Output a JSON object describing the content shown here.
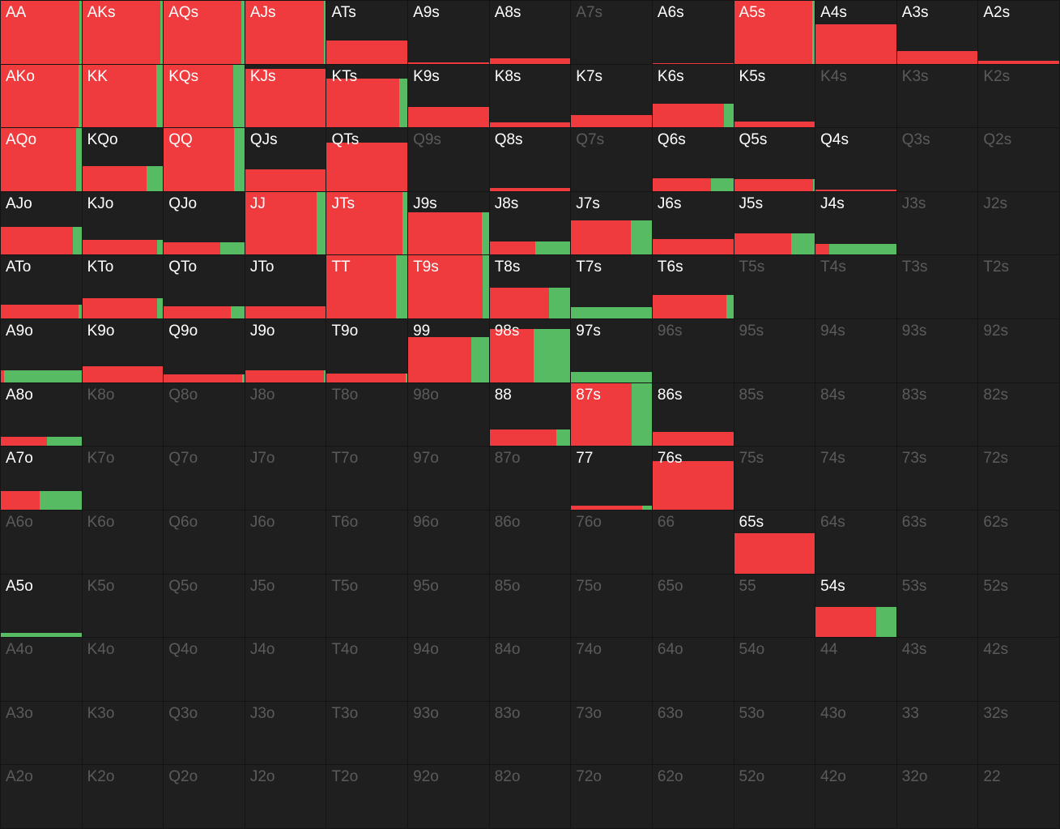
{
  "colors": {
    "raise": "#ef3b3d",
    "call": "#57bb63",
    "cell_bg": "#1f1f1f",
    "active_text": "#ffffff",
    "inactive_text": "#5b5b5b"
  },
  "grid": {
    "rows": [
      [
        "AA",
        "AKs",
        "AQs",
        "AJs",
        "ATs",
        "A9s",
        "A8s",
        "A7s",
        "A6s",
        "A5s",
        "A4s",
        "A3s",
        "A2s"
      ],
      [
        "AKo",
        "KK",
        "KQs",
        "KJs",
        "KTs",
        "K9s",
        "K8s",
        "K7s",
        "K6s",
        "K5s",
        "K4s",
        "K3s",
        "K2s"
      ],
      [
        "AQo",
        "KQo",
        "QQ",
        "QJs",
        "QTs",
        "Q9s",
        "Q8s",
        "Q7s",
        "Q6s",
        "Q5s",
        "Q4s",
        "Q3s",
        "Q2s"
      ],
      [
        "AJo",
        "KJo",
        "QJo",
        "JJ",
        "JTs",
        "J9s",
        "J8s",
        "J7s",
        "J6s",
        "J5s",
        "J4s",
        "J3s",
        "J2s"
      ],
      [
        "ATo",
        "KTo",
        "QTo",
        "JTo",
        "TT",
        "T9s",
        "T8s",
        "T7s",
        "T6s",
        "T5s",
        "T4s",
        "T3s",
        "T2s"
      ],
      [
        "A9o",
        "K9o",
        "Q9o",
        "J9o",
        "T9o",
        "99",
        "98s",
        "97s",
        "96s",
        "95s",
        "94s",
        "93s",
        "92s"
      ],
      [
        "A8o",
        "K8o",
        "Q8o",
        "J8o",
        "T8o",
        "98o",
        "88",
        "87s",
        "86s",
        "85s",
        "84s",
        "83s",
        "82s"
      ],
      [
        "A7o",
        "K7o",
        "Q7o",
        "J7o",
        "T7o",
        "97o",
        "87o",
        "77",
        "76s",
        "75s",
        "74s",
        "73s",
        "72s"
      ],
      [
        "A6o",
        "K6o",
        "Q6o",
        "J6o",
        "T6o",
        "96o",
        "86o",
        "76o",
        "66",
        "65s",
        "64s",
        "63s",
        "62s"
      ],
      [
        "A5o",
        "K5o",
        "Q5o",
        "J5o",
        "T5o",
        "95o",
        "85o",
        "75o",
        "65o",
        "55",
        "54s",
        "53s",
        "52s"
      ],
      [
        "A4o",
        "K4o",
        "Q4o",
        "J4o",
        "T4o",
        "94o",
        "84o",
        "74o",
        "64o",
        "54o",
        "44",
        "43s",
        "42s"
      ],
      [
        "A3o",
        "K3o",
        "Q3o",
        "J3o",
        "T3o",
        "93o",
        "83o",
        "73o",
        "63o",
        "53o",
        "43o",
        "33",
        "32s"
      ],
      [
        "A2o",
        "K2o",
        "Q2o",
        "J2o",
        "T2o",
        "92o",
        "82o",
        "72o",
        "62o",
        "52o",
        "42o",
        "32o",
        "22"
      ]
    ]
  },
  "hands": {
    "AA": {
      "freq": 1.0,
      "raise": 0.97
    },
    "AKs": {
      "freq": 1.0,
      "raise": 0.97
    },
    "AQs": {
      "freq": 1.0,
      "raise": 0.96
    },
    "AJs": {
      "freq": 1.0,
      "raise": 0.98
    },
    "ATs": {
      "freq": 0.37,
      "raise": 1.0
    },
    "A9s": {
      "freq": 0.02,
      "raise": 1.0
    },
    "A8s": {
      "freq": 0.08,
      "raise": 1.0
    },
    "A6s": {
      "freq": 0.01,
      "raise": 1.0
    },
    "A5s": {
      "freq": 1.0,
      "raise": 0.97
    },
    "A4s": {
      "freq": 0.63,
      "raise": 1.0
    },
    "A3s": {
      "freq": 0.2,
      "raise": 1.0
    },
    "A2s": {
      "freq": 0.05,
      "raise": 1.0
    },
    "AKo": {
      "freq": 1.0,
      "raise": 0.96
    },
    "KK": {
      "freq": 1.0,
      "raise": 0.92
    },
    "KQs": {
      "freq": 1.0,
      "raise": 0.86
    },
    "KJs": {
      "freq": 0.93,
      "raise": 1.0
    },
    "KTs": {
      "freq": 0.78,
      "raise": 0.9
    },
    "K9s": {
      "freq": 0.32,
      "raise": 1.0
    },
    "K8s": {
      "freq": 0.08,
      "raise": 1.0
    },
    "K7s": {
      "freq": 0.2,
      "raise": 1.0
    },
    "K6s": {
      "freq": 0.38,
      "raise": 0.88
    },
    "K5s": {
      "freq": 0.09,
      "raise": 1.0
    },
    "AQo": {
      "freq": 1.0,
      "raise": 0.93
    },
    "KQo": {
      "freq": 0.4,
      "raise": 0.8
    },
    "QQ": {
      "freq": 1.0,
      "raise": 0.87
    },
    "QJs": {
      "freq": 0.35,
      "raise": 1.0
    },
    "QTs": {
      "freq": 0.77,
      "raise": 1.0
    },
    "Q8s": {
      "freq": 0.05,
      "raise": 1.0
    },
    "Q6s": {
      "freq": 0.2,
      "raise": 0.72
    },
    "Q5s": {
      "freq": 0.19,
      "raise": 0.98
    },
    "Q4s": {
      "freq": 0.02,
      "raise": 1.0
    },
    "AJo": {
      "freq": 0.44,
      "raise": 0.89
    },
    "KJo": {
      "freq": 0.24,
      "raise": 0.93
    },
    "QJo": {
      "freq": 0.2,
      "raise": 0.7
    },
    "JJ": {
      "freq": 1.0,
      "raise": 0.89
    },
    "JTs": {
      "freq": 1.0,
      "raise": 0.94
    },
    "J9s": {
      "freq": 0.68,
      "raise": 0.91
    },
    "J8s": {
      "freq": 0.21,
      "raise": 0.57
    },
    "J7s": {
      "freq": 0.55,
      "raise": 0.74
    },
    "J6s": {
      "freq": 0.25,
      "raise": 1.0
    },
    "J5s": {
      "freq": 0.34,
      "raise": 0.71
    },
    "J4s": {
      "freq": 0.17,
      "raise": 0.17
    },
    "ATo": {
      "freq": 0.22,
      "raise": 0.96
    },
    "KTo": {
      "freq": 0.32,
      "raise": 0.93
    },
    "QTo": {
      "freq": 0.19,
      "raise": 0.83
    },
    "JTo": {
      "freq": 0.19,
      "raise": 1.0
    },
    "TT": {
      "freq": 1.0,
      "raise": 0.86
    },
    "T9s": {
      "freq": 1.0,
      "raise": 0.92
    },
    "T8s": {
      "freq": 0.49,
      "raise": 0.74
    },
    "T7s": {
      "freq": 0.18,
      "raise": 0.0
    },
    "T6s": {
      "freq": 0.38,
      "raise": 0.91
    },
    "A9o": {
      "freq": 0.19,
      "raise": 0.04
    },
    "K9o": {
      "freq": 0.25,
      "raise": 1.0
    },
    "Q9o": {
      "freq": 0.13,
      "raise": 0.97
    },
    "J9o": {
      "freq": 0.19,
      "raise": 0.98
    },
    "T9o": {
      "freq": 0.14,
      "raise": 0.98
    },
    "99": {
      "freq": 0.72,
      "raise": 0.78
    },
    "98s": {
      "freq": 0.85,
      "raise": 0.55
    },
    "97s": {
      "freq": 0.17,
      "raise": 0.0
    },
    "A8o": {
      "freq": 0.15,
      "raise": 0.57
    },
    "88": {
      "freq": 0.26,
      "raise": 0.83
    },
    "87s": {
      "freq": 1.0,
      "raise": 0.75
    },
    "86s": {
      "freq": 0.22,
      "raise": 1.0
    },
    "A7o": {
      "freq": 0.3,
      "raise": 0.48
    },
    "77": {
      "freq": 0.06,
      "raise": 0.88
    },
    "76s": {
      "freq": 0.77,
      "raise": 1.0
    },
    "65s": {
      "freq": 0.64,
      "raise": 1.0
    },
    "A5o": {
      "freq": 0.07,
      "raise": 0.0
    },
    "54s": {
      "freq": 0.48,
      "raise": 0.75
    }
  }
}
